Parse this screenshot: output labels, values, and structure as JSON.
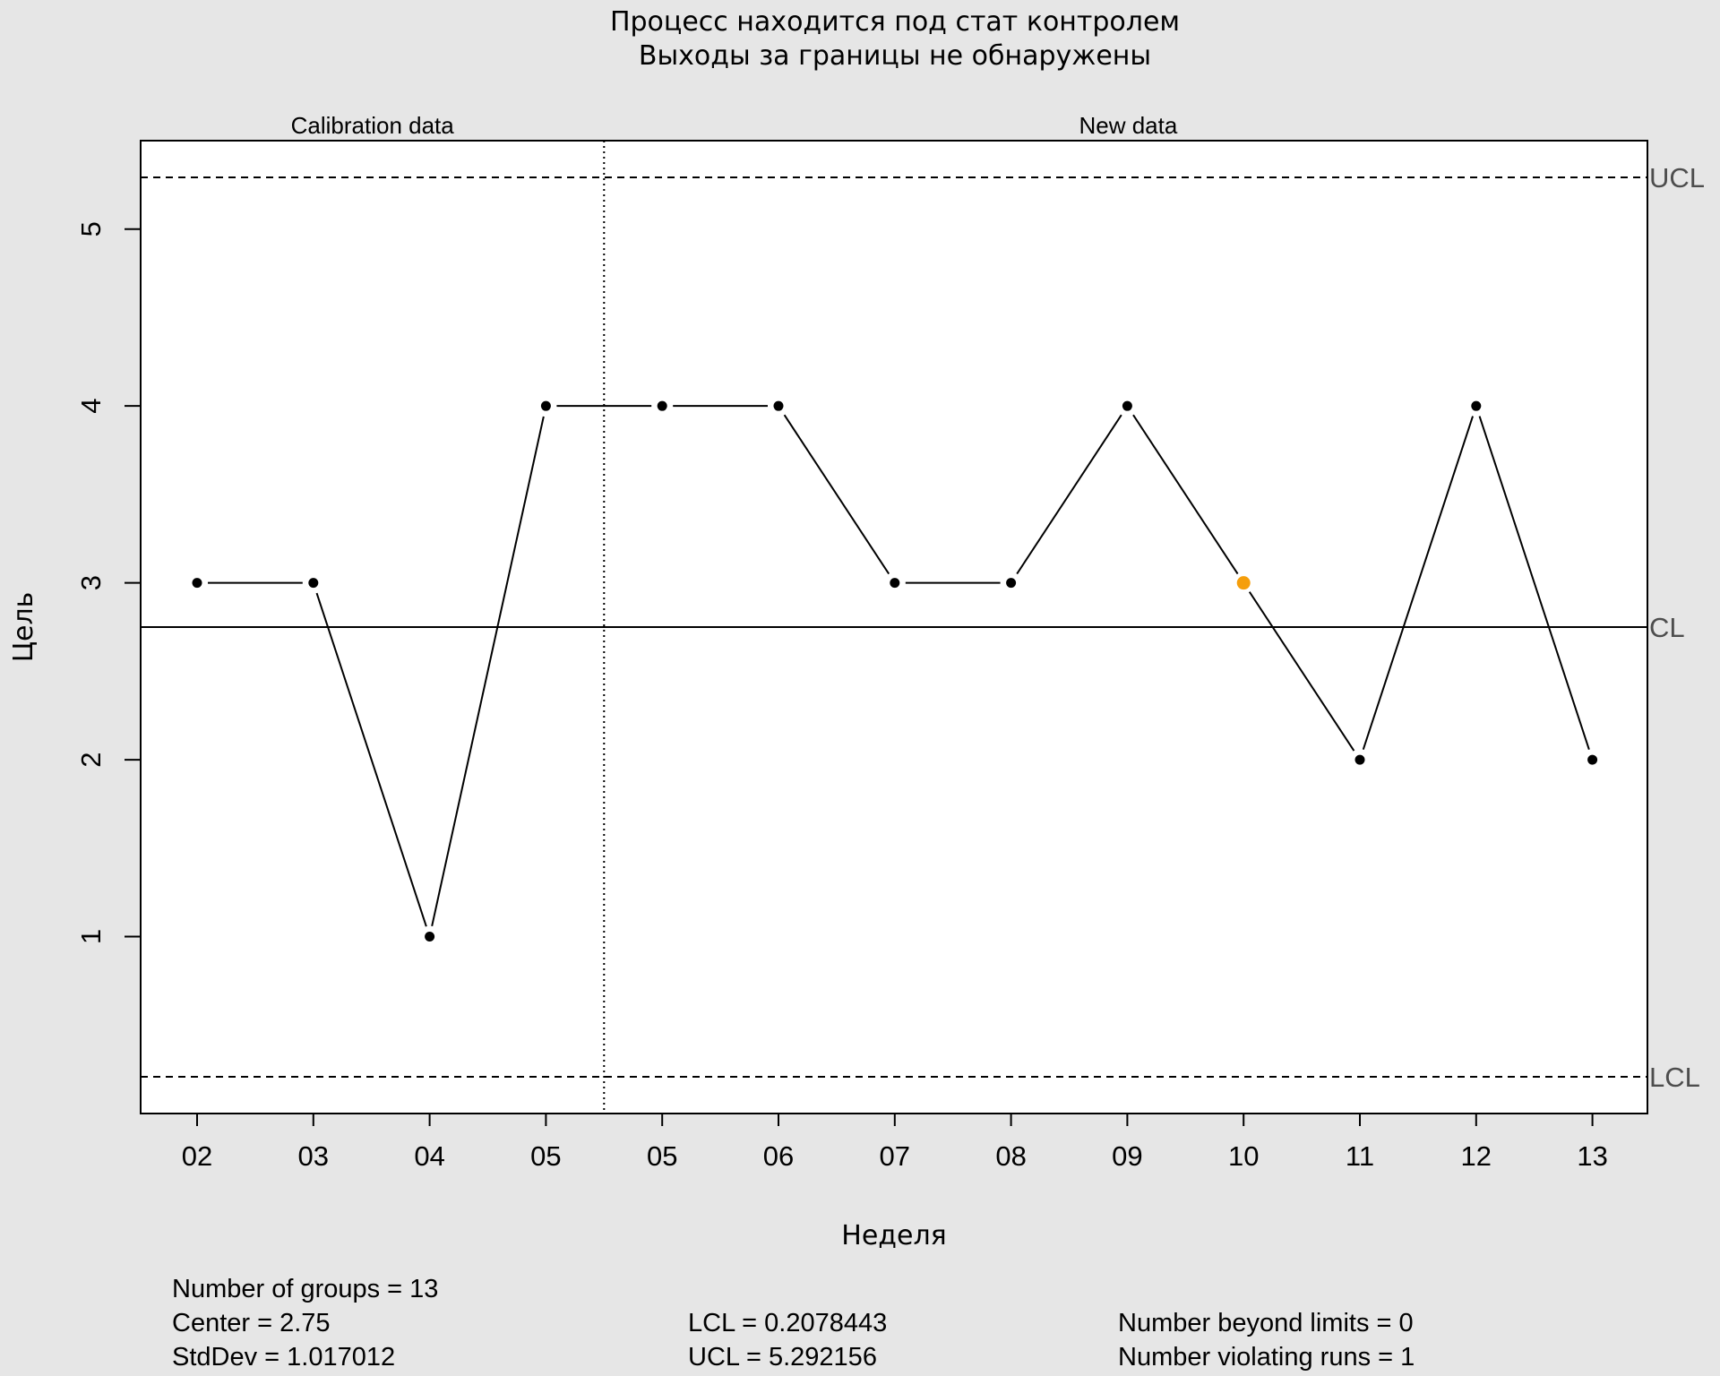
{
  "chart_data": {
    "type": "line",
    "title": [
      "Процесс находится под стат контролем",
      "Выходы за границы не обнаружены"
    ],
    "xlabel": "Неделя",
    "ylabel": "Цель",
    "categories": [
      "02",
      "03",
      "04",
      "05",
      "05",
      "06",
      "07",
      "08",
      "09",
      "10",
      "11",
      "12",
      "13"
    ],
    "values": [
      3,
      3,
      1,
      4,
      4,
      4,
      3,
      3,
      4,
      3,
      2,
      4,
      2
    ],
    "calibration_count": 4,
    "sections": [
      "Calibration data",
      "New data"
    ],
    "yticks": [
      1,
      2,
      3,
      4,
      5
    ],
    "ylim": [
      0.0,
      5.5
    ],
    "center": 2.75,
    "lcl": 0.2078443,
    "ucl": 5.292156,
    "limit_labels": {
      "ucl": "UCL",
      "cl": "CL",
      "lcl": "LCL"
    },
    "violating_runs_index": [
      9
    ],
    "colors": {
      "point": "#000000",
      "violating": "#f59e0b",
      "line": "#000000",
      "background": "#e6e6e6"
    }
  },
  "stats": {
    "groups": "Number of groups = 13",
    "center": "Center = 2.75",
    "stddev": "StdDev = 1.017012",
    "lcl": "LCL = 0.2078443",
    "ucl": "UCL = 5.292156",
    "beyond": "Number beyond limits = 0",
    "violating": "Number violating runs = 1"
  }
}
